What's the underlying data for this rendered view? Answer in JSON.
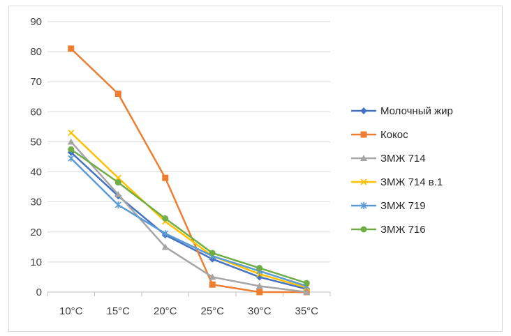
{
  "chart_data": {
    "type": "line",
    "title": "",
    "xlabel": "",
    "ylabel": "",
    "categories": [
      "10°C",
      "15°C",
      "20°C",
      "25°C",
      "30°C",
      "35°C"
    ],
    "ylim": [
      0,
      90
    ],
    "yticks": [
      0,
      10,
      20,
      30,
      40,
      50,
      60,
      70,
      80,
      90
    ],
    "grid": "horizontal",
    "legend_position": "right",
    "series": [
      {
        "name": "Молочный жир",
        "color": "#4472C4",
        "marker": "diamond",
        "values": [
          46.5,
          32,
          19,
          11,
          5,
          1
        ]
      },
      {
        "name": "Кокос",
        "color": "#ED7D31",
        "marker": "square",
        "values": [
          81,
          66,
          38,
          2.5,
          0,
          0
        ]
      },
      {
        "name": "ЗМЖ 714",
        "color": "#A5A5A5",
        "marker": "triangle",
        "values": [
          50,
          32.5,
          15,
          5,
          2,
          0
        ]
      },
      {
        "name": "ЗМЖ 714 в.1",
        "color": "#FFC000",
        "marker": "x",
        "values": [
          53,
          38,
          23.5,
          12,
          6,
          1.5
        ]
      },
      {
        "name": "ЗМЖ 719",
        "color": "#5B9BD5",
        "marker": "star",
        "values": [
          44.5,
          29,
          19.5,
          12,
          7,
          2
        ]
      },
      {
        "name": "ЗМЖ 716",
        "color": "#70AD47",
        "marker": "circle",
        "values": [
          47.5,
          36.5,
          24.5,
          13,
          8,
          3
        ]
      }
    ]
  }
}
